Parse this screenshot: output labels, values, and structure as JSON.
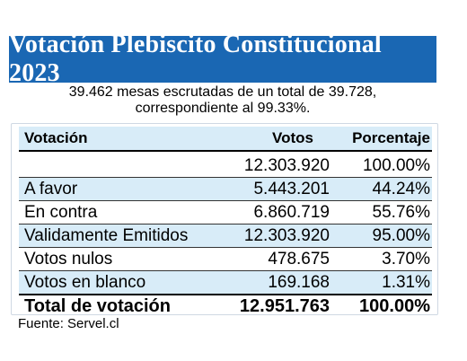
{
  "title": "Votación Plebiscito Constitucional 2023",
  "subtitle_line1": "39.462 mesas escrutadas de un total de 39.728,",
  "subtitle_line2": "correspondiente al 99.33%.",
  "table": {
    "headers": [
      "Votación",
      "Votos",
      "Porcentaje"
    ],
    "rows": [
      {
        "label": "",
        "votos": "12.303.920",
        "pct": "100.00%"
      },
      {
        "label": "A favor",
        "votos": "5.443.201",
        "pct": "44.24%"
      },
      {
        "label": "En contra",
        "votos": "6.860.719",
        "pct": "55.76%"
      },
      {
        "label": "Validamente Emitidos",
        "votos": "12.303.920",
        "pct": "95.00%"
      },
      {
        "label": "Votos nulos",
        "votos": "478.675",
        "pct": "3.70%"
      },
      {
        "label": "Votos en blanco",
        "votos": "169.168",
        "pct": "1.31%"
      }
    ],
    "total": {
      "label": "Total de votación",
      "votos": "12.951.763",
      "pct": "100.00%"
    }
  },
  "source": "Fuente: Servel.cl",
  "colors": {
    "banner": "#1a67b3",
    "row_shade": "#d8ecf8"
  }
}
